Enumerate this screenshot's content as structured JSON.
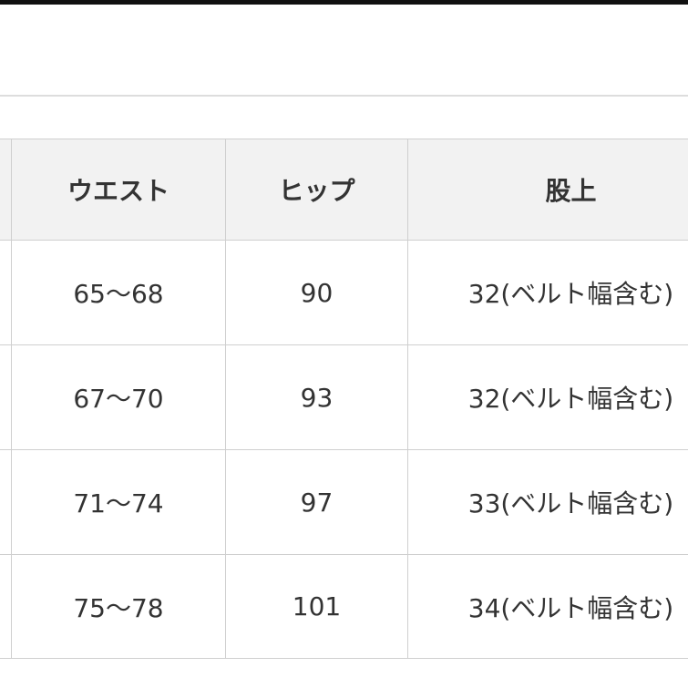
{
  "table": {
    "header": [
      "ウエスト",
      "ヒップ",
      "股上"
    ],
    "rows": [
      [
        "65～68",
        "90",
        "32(ベルト幅含む)"
      ],
      [
        "67～70",
        "93",
        "32(ベルト幅含む)"
      ],
      [
        "71～74",
        "97",
        "33(ベルト幅含む)"
      ],
      [
        "75～78",
        "101",
        "34(ベルト幅含む)"
      ]
    ]
  }
}
